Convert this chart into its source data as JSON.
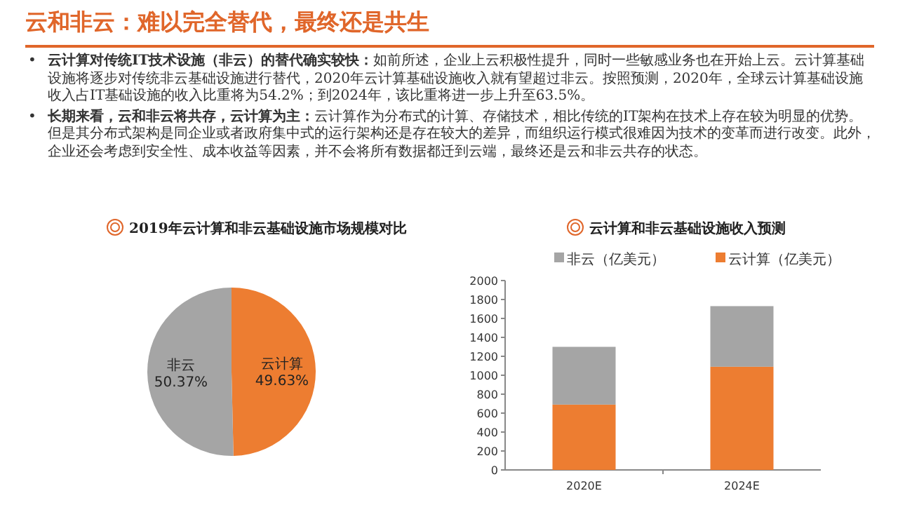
{
  "chart_data": [
    {
      "type": "pie",
      "title": "2019年云计算和非云基础设施市场规模对比",
      "annotations": [
        "云和非云：难以完全替代，最终还是共生",
        "•",
        "云计算对传统IT技术设施（非云）的替代确实较快：",
        "如前所述，企业上云积极性提升，同时一些敏感业务也在开始上云。云计算基础设施将逐步对传统非云基础设施进行替代，2020年云计算基础设施收入就有望超过非云。按照预测，2020年，全球云计算基础设施收入占IT基础设施的收入比重将为54.2%；到2024年，该比重将进一步上升至63.5%。",
        "•",
        "长期来看，云和非云将共存，云计算为主：",
        "云计算作为分布式的计算、存储技术，相比传统的IT架构在技术上存在较为明显的优势。但是其分布式架构是同企业或者政府集中式的运行架构还是存在较大的差异，而组织运行模式很难因为技术的变革而进行改变。此外，企业还会考虑到安全性、成本收益等因素，并不会将所有数据都迁到云端，最终还是云和非云共存的状态。"
      ],
      "categories": [
        "云计算",
        "非云"
      ],
      "values": [
        49.63,
        50.37
      ],
      "value_labels": [
        "49.63%",
        "50.37%"
      ],
      "colors": [
        "#ed7d31",
        "#a5a5a5"
      ]
    },
    {
      "type": "bar",
      "title": "云计算和非云基础设施收入预测",
      "stacked": true,
      "legend": "top",
      "grid": false,
      "categories": [
        "2020E",
        "2024E"
      ],
      "series": [
        {
          "name": "云计算（亿美元）",
          "color": "#ed7d31",
          "values": [
            690,
            1090
          ]
        },
        {
          "name": "非云（亿美元）",
          "color": "#a5a5a5",
          "values": [
            610,
            640
          ]
        }
      ],
      "ylim": [
        0,
        2000
      ],
      "yticks": [
        0,
        200,
        400,
        600,
        800,
        1000,
        1200,
        1400,
        1600,
        1800,
        2000
      ]
    }
  ]
}
